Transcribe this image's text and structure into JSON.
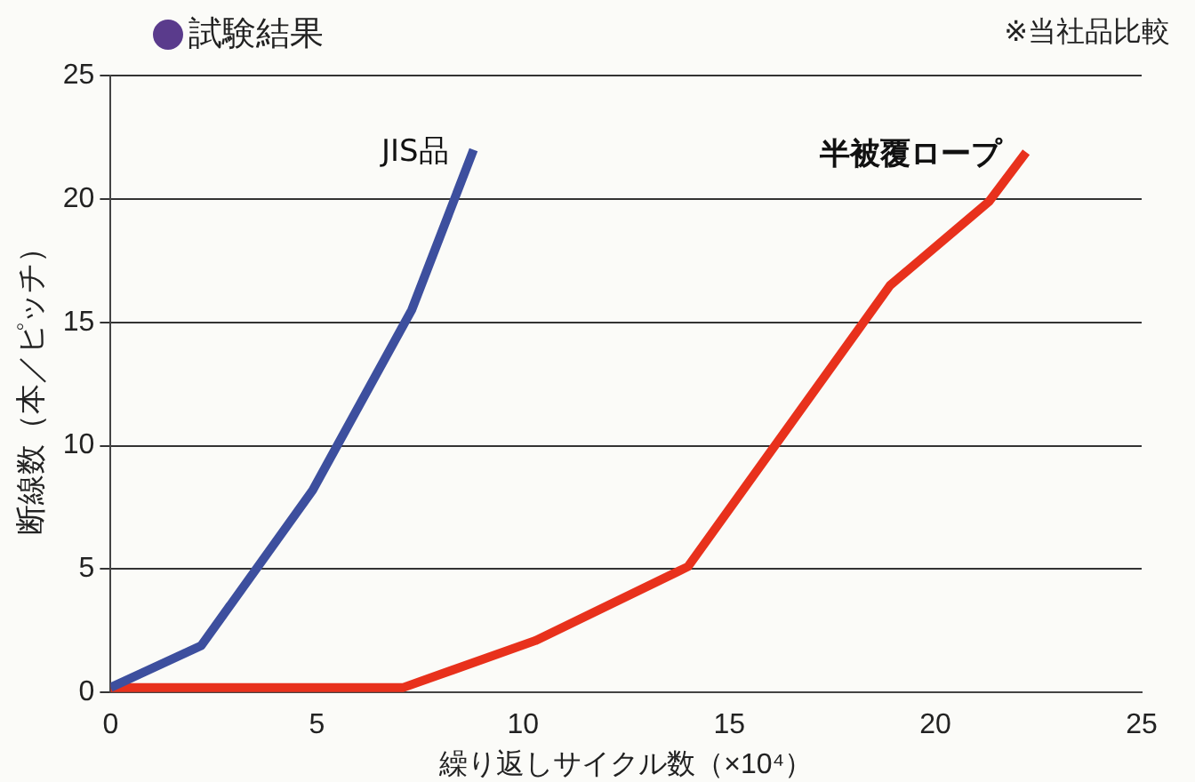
{
  "chart_data": {
    "type": "line",
    "title": "試験結果",
    "annotations": [
      "※当社品比較"
    ],
    "xlabel": "繰り返しサイクル数（×10⁴）",
    "ylabel": "断線数（本／ピッチ）",
    "xlim": [
      0,
      25
    ],
    "xticks": [
      0,
      5,
      10,
      15,
      20,
      25
    ],
    "ylim": [
      0,
      25
    ],
    "yticks": [
      0,
      5,
      10,
      15,
      20,
      25
    ],
    "grid": "y",
    "legend": false,
    "marker": "none",
    "line_style": "solid",
    "series": [
      {
        "name": "JIS品",
        "color": "#3d4f9e",
        "x": [
          0,
          2.2,
          4.9,
          7.3,
          8.8
        ],
        "values": [
          0.2,
          1.9,
          8.2,
          15.5,
          22.0
        ]
      },
      {
        "name": "半被覆ロープ",
        "color": "#e8311c",
        "x": [
          0,
          7.1,
          10.3,
          14.0,
          18.9,
          21.3,
          22.2
        ],
        "values": [
          0.2,
          0.2,
          2.1,
          5.1,
          16.5,
          19.9,
          21.9
        ]
      }
    ]
  }
}
